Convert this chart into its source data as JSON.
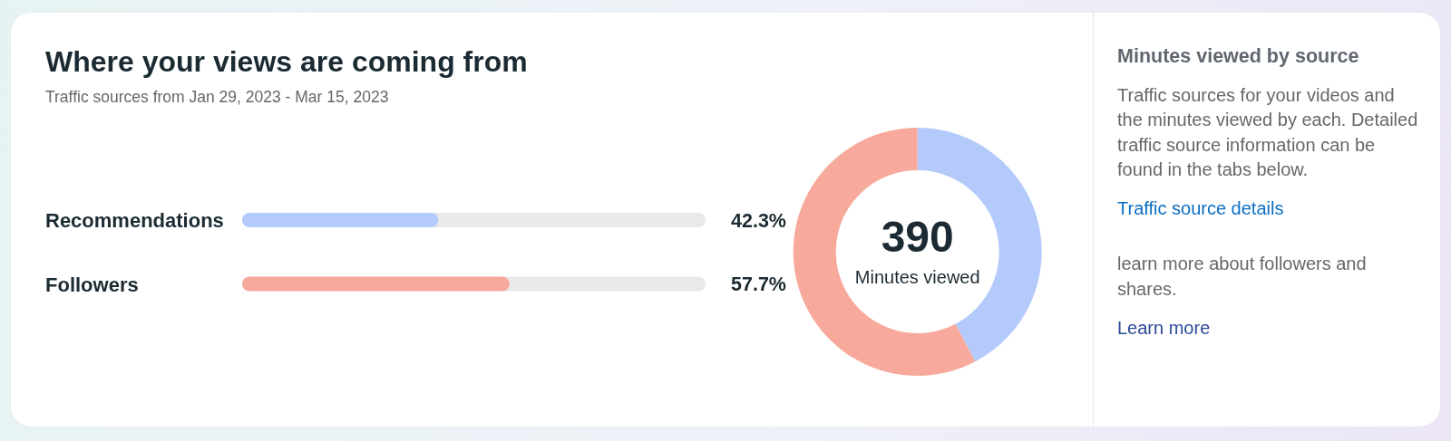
{
  "chart_data": [
    {
      "type": "bar",
      "orientation": "horizontal",
      "title": "Where your views are coming from",
      "subtitle": "Traffic sources from Jan 29, 2023 - Mar 15, 2023",
      "categories": [
        "Recommendations",
        "Followers"
      ],
      "values": [
        42.3,
        57.7
      ],
      "colors": [
        "#b3cafb",
        "#f7aa9c"
      ],
      "value_labels": [
        "42.3%",
        "57.7%"
      ],
      "xlim": [
        0,
        100
      ],
      "tick_labels": "y"
    },
    {
      "type": "donut",
      "categories": [
        null,
        null
      ],
      "values": [
        42.3,
        57.7
      ],
      "colors": [
        "#b3cafb",
        "#f7aa9c"
      ],
      "annotations": [
        "390",
        "Minutes viewed"
      ]
    },
    {
      "type": "other",
      "title": "Minutes viewed by source",
      "annotations": [
        "Traffic sources for your videos and the minutes viewed by each. Detailed traffic source information can be found in the tabs below.",
        "Traffic source details",
        "learn more about followers and shares.",
        "Learn more"
      ]
    }
  ]
}
